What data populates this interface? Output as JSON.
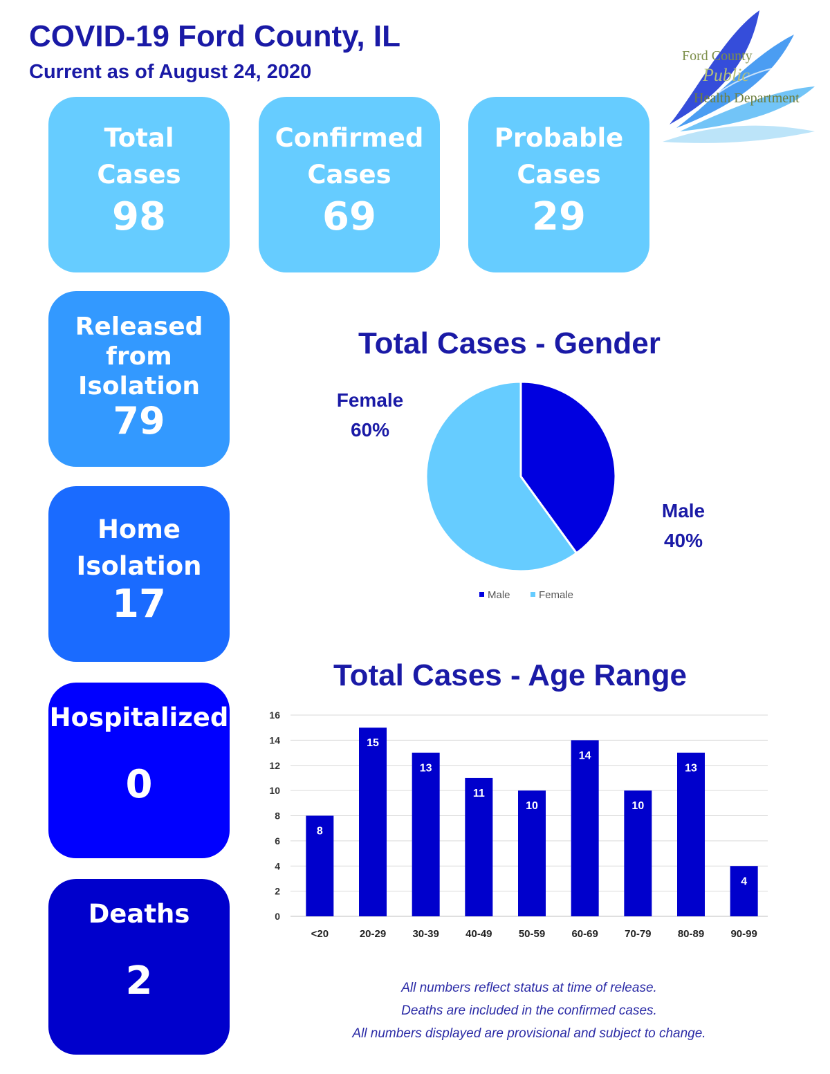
{
  "header": {
    "title": "COVID-19 Ford County, IL",
    "subtitle": "Current as of August 24, 2020"
  },
  "logo": {
    "line1": "Ford County",
    "line2": "Public",
    "line3": "Health Department"
  },
  "stats": {
    "total": {
      "label1": "Total",
      "label2": "Cases",
      "value": "98"
    },
    "confirmed": {
      "label1": "Confirmed",
      "label2": "Cases",
      "value": "69"
    },
    "probable": {
      "label1": "Probable",
      "label2": "Cases",
      "value": "29"
    },
    "released": {
      "label1": "Released",
      "label2": "from",
      "label3": "Isolation",
      "value": "79"
    },
    "home": {
      "label1": "Home",
      "label2": "Isolation",
      "value": "17"
    },
    "hospitalized": {
      "label1": "Hospitalized",
      "value": "0"
    },
    "deaths": {
      "label1": "Deaths",
      "value": "2"
    }
  },
  "colors": {
    "light_blue": "#66ccff",
    "mid_blue": "#3399ff",
    "blue": "#1a6bff",
    "bright_blue": "#0000ff",
    "dark_blue": "#0000cc",
    "title_blue": "#1a1aa6"
  },
  "chart_data": [
    {
      "type": "pie",
      "title": "Total Cases - Gender",
      "labels": [
        "Male",
        "Female"
      ],
      "values": [
        40,
        60
      ],
      "data_labels": [
        {
          "name": "Male",
          "pct": "40%"
        },
        {
          "name": "Female",
          "pct": "60%"
        }
      ],
      "colors": [
        "#0000e0",
        "#66ccff"
      ],
      "legend": {
        "position": "bottom",
        "entries": [
          "Male",
          "Female"
        ]
      }
    },
    {
      "type": "bar",
      "title": "Total Cases - Age Range",
      "categories": [
        "<20",
        "20-29",
        "30-39",
        "40-49",
        "50-59",
        "60-69",
        "70-79",
        "80-89",
        "90-99"
      ],
      "values": [
        8,
        15,
        13,
        11,
        10,
        14,
        10,
        13,
        4
      ],
      "ylim": [
        0,
        16
      ],
      "yticks": [
        0,
        2,
        4,
        6,
        8,
        10,
        12,
        14,
        16
      ],
      "grid": true,
      "color": "#0000cc",
      "xlabel": "",
      "ylabel": ""
    }
  ],
  "notes": [
    "All numbers reflect status at time of release.",
    "Deaths are included in the confirmed cases.",
    "All numbers displayed are provisional and subject to change."
  ]
}
